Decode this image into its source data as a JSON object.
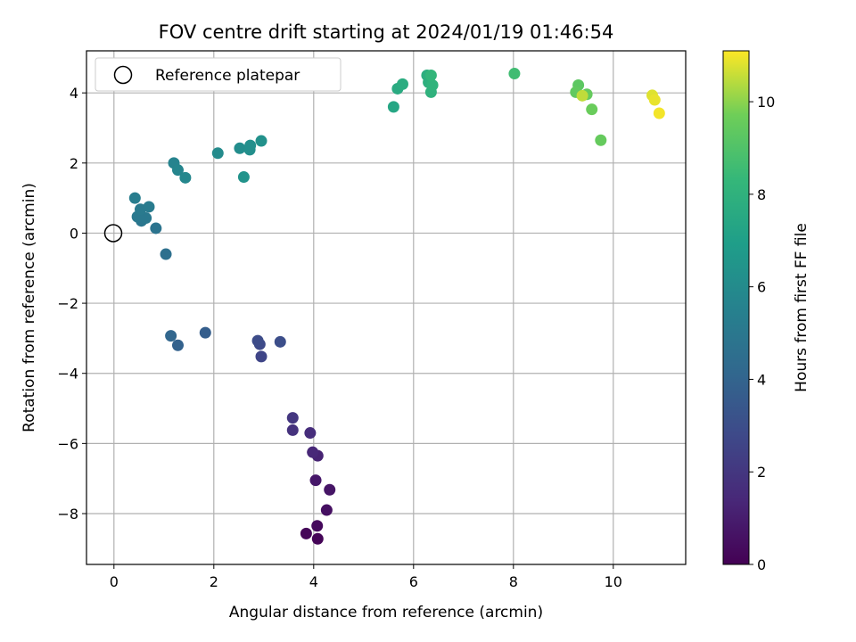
{
  "chart_data": {
    "type": "scatter",
    "title": "FOV centre drift starting at 2024/01/19 01:46:54",
    "xlabel": "Angular distance from reference (arcmin)",
    "ylabel": "Rotation from reference (arcmin)",
    "xlim": [
      -0.55,
      11.45
    ],
    "ylim": [
      -9.45,
      5.2
    ],
    "x_ticks": [
      0,
      2,
      4,
      6,
      8,
      10
    ],
    "x_tick_labels": [
      "0",
      "2",
      "4",
      "6",
      "8",
      "10"
    ],
    "y_ticks": [
      -8,
      -6,
      -4,
      -2,
      0,
      2,
      4
    ],
    "y_tick_labels": [
      "−8",
      "−6",
      "−4",
      "−2",
      "0",
      "2",
      "4"
    ],
    "grid": true,
    "legend": {
      "position": "top-left",
      "entries": [
        {
          "label": "Reference platepar",
          "marker": "open-circle"
        }
      ]
    },
    "reference_point": {
      "x": 0,
      "y": 0
    },
    "colorbar": {
      "label": "Hours from first FF file",
      "colormap": "viridis",
      "range": [
        0,
        11.1
      ],
      "ticks": [
        0,
        2,
        4,
        6,
        8,
        10
      ],
      "tick_labels": [
        "0",
        "2",
        "4",
        "6",
        "8",
        "10"
      ]
    },
    "points": [
      {
        "x": 4.08,
        "y": -8.72,
        "hours": 0.1
      },
      {
        "x": 3.85,
        "y": -8.57,
        "hours": 0.2
      },
      {
        "x": 4.07,
        "y": -8.35,
        "hours": 0.3
      },
      {
        "x": 4.26,
        "y": -7.9,
        "hours": 0.5
      },
      {
        "x": 4.32,
        "y": -7.32,
        "hours": 0.7
      },
      {
        "x": 4.04,
        "y": -7.05,
        "hours": 0.8
      },
      {
        "x": 4.08,
        "y": -6.35,
        "hours": 1.2
      },
      {
        "x": 3.98,
        "y": -6.25,
        "hours": 1.4
      },
      {
        "x": 3.93,
        "y": -5.7,
        "hours": 1.6
      },
      {
        "x": 3.58,
        "y": -5.62,
        "hours": 1.8
      },
      {
        "x": 3.58,
        "y": -5.27,
        "hours": 2.0
      },
      {
        "x": 2.95,
        "y": -3.52,
        "hours": 2.6
      },
      {
        "x": 2.92,
        "y": -3.17,
        "hours": 2.8
      },
      {
        "x": 2.88,
        "y": -3.07,
        "hours": 2.9
      },
      {
        "x": 3.33,
        "y": -3.1,
        "hours": 3.0
      },
      {
        "x": 1.83,
        "y": -2.84,
        "hours": 3.7
      },
      {
        "x": 1.28,
        "y": -3.2,
        "hours": 3.9
      },
      {
        "x": 1.14,
        "y": -2.93,
        "hours": 4.1
      },
      {
        "x": 1.04,
        "y": -0.6,
        "hours": 4.6
      },
      {
        "x": 0.84,
        "y": 0.14,
        "hours": 4.8
      },
      {
        "x": 0.55,
        "y": 0.35,
        "hours": 4.9
      },
      {
        "x": 0.47,
        "y": 0.47,
        "hours": 5.0
      },
      {
        "x": 0.64,
        "y": 0.43,
        "hours": 5.0
      },
      {
        "x": 0.53,
        "y": 0.68,
        "hours": 5.1
      },
      {
        "x": 0.7,
        "y": 0.75,
        "hours": 5.2
      },
      {
        "x": 0.42,
        "y": 1.0,
        "hours": 5.3
      },
      {
        "x": 1.2,
        "y": 2.0,
        "hours": 5.6
      },
      {
        "x": 1.28,
        "y": 1.8,
        "hours": 5.7
      },
      {
        "x": 1.43,
        "y": 1.58,
        "hours": 5.8
      },
      {
        "x": 2.08,
        "y": 2.28,
        "hours": 6.0
      },
      {
        "x": 2.52,
        "y": 2.42,
        "hours": 6.1
      },
      {
        "x": 2.72,
        "y": 2.38,
        "hours": 6.2
      },
      {
        "x": 2.73,
        "y": 2.5,
        "hours": 6.2
      },
      {
        "x": 2.95,
        "y": 2.63,
        "hours": 6.3
      },
      {
        "x": 2.6,
        "y": 1.6,
        "hours": 6.4
      },
      {
        "x": 5.6,
        "y": 3.6,
        "hours": 7.4
      },
      {
        "x": 5.68,
        "y": 4.12,
        "hours": 7.6
      },
      {
        "x": 5.78,
        "y": 4.25,
        "hours": 7.7
      },
      {
        "x": 6.27,
        "y": 4.5,
        "hours": 7.8
      },
      {
        "x": 6.3,
        "y": 4.3,
        "hours": 7.9
      },
      {
        "x": 6.35,
        "y": 4.02,
        "hours": 8.0
      },
      {
        "x": 6.38,
        "y": 4.22,
        "hours": 8.1
      },
      {
        "x": 6.35,
        "y": 4.5,
        "hours": 8.2
      },
      {
        "x": 8.02,
        "y": 4.55,
        "hours": 8.6
      },
      {
        "x": 9.3,
        "y": 4.22,
        "hours": 9.3
      },
      {
        "x": 9.25,
        "y": 4.02,
        "hours": 9.4
      },
      {
        "x": 9.47,
        "y": 3.96,
        "hours": 9.5
      },
      {
        "x": 9.57,
        "y": 3.53,
        "hours": 9.6
      },
      {
        "x": 9.75,
        "y": 2.65,
        "hours": 9.5
      },
      {
        "x": 9.38,
        "y": 3.92,
        "hours": 10.5
      },
      {
        "x": 10.78,
        "y": 3.93,
        "hours": 10.8
      },
      {
        "x": 10.83,
        "y": 3.8,
        "hours": 10.9
      },
      {
        "x": 10.92,
        "y": 3.42,
        "hours": 11.0
      }
    ]
  }
}
